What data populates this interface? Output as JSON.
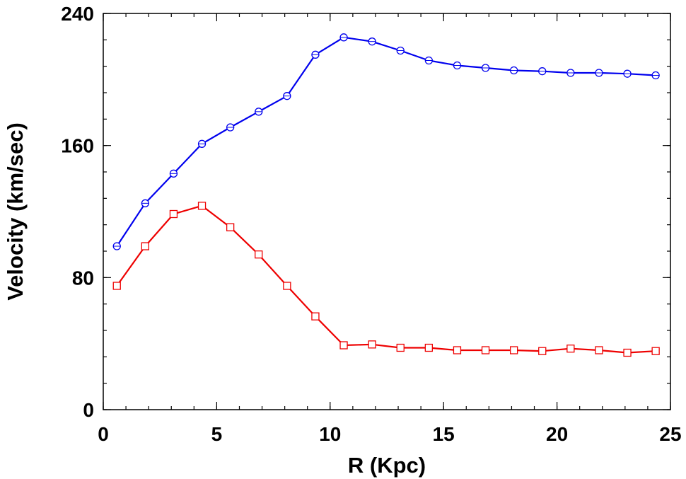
{
  "chart_data": {
    "type": "line",
    "xlabel": "R (Kpc)",
    "ylabel": "Velocity (km/sec)",
    "xlim": [
      0,
      25
    ],
    "ylim": [
      0,
      240
    ],
    "x_ticks": [
      "0",
      "5",
      "10",
      "15",
      "20",
      "25"
    ],
    "y_ticks": [
      "0",
      "80",
      "160",
      "240"
    ],
    "x_minor_step": 1,
    "y_minor_step": 16,
    "grid": false,
    "x": [
      0.6,
      1.85,
      3.1,
      4.35,
      5.6,
      6.85,
      8.1,
      9.35,
      10.6,
      11.85,
      13.1,
      14.35,
      15.6,
      16.85,
      18.1,
      19.35,
      20.6,
      21.85,
      23.1,
      24.35
    ],
    "series": [
      {
        "color": "#0000ee",
        "marker": "circle",
        "values": [
          99,
          125,
          143,
          161,
          171,
          180.5,
          190,
          215,
          225.5,
          223,
          217.5,
          211.5,
          208.5,
          207,
          205.5,
          205,
          204,
          204,
          203.5,
          202.5
        ]
      },
      {
        "color": "#ee0000",
        "marker": "square",
        "values": [
          75,
          99,
          118.5,
          123.5,
          110.5,
          94,
          75,
          56.5,
          39,
          39.5,
          37.5,
          37.5,
          36,
          36,
          36,
          35.5,
          37,
          36,
          34.5,
          35.5
        ]
      }
    ]
  }
}
